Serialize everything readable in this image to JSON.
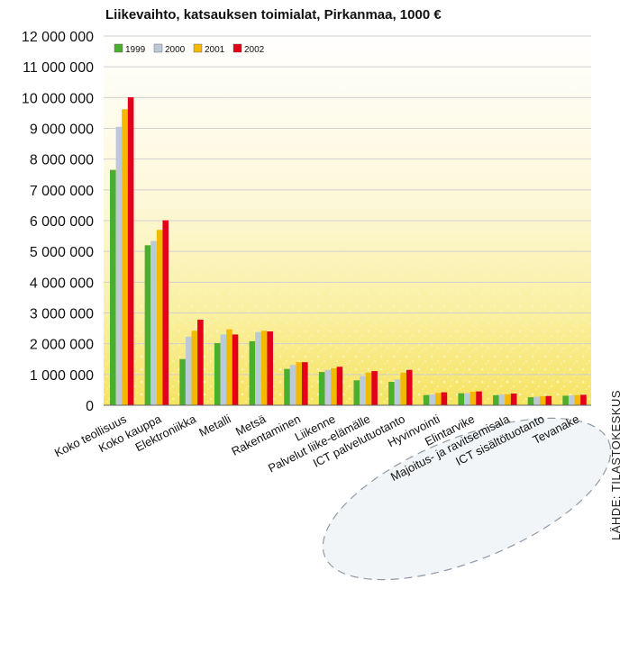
{
  "chart_data": {
    "type": "bar",
    "title": "Liikevaihto, katsauksen toimialat, Pirkanmaa, 1000 €",
    "source": "LÄHDE: TILASTOKESKUS",
    "xlabel": "",
    "ylabel": "",
    "ylim": [
      0,
      12000000
    ],
    "yticks": [
      "0",
      "1 000 000",
      "2 000 000",
      "3 000 000",
      "4 000 000",
      "5 000 000",
      "6 000 000",
      "7 000 000",
      "8 000 000",
      "9 000 000",
      "10 000 000",
      "11 000 000",
      "12 000 000"
    ],
    "grid": true,
    "legend_position": "top-left",
    "categories": [
      "Koko teollisuus",
      "Koko kauppa",
      "Elektroniikka",
      "Metalli",
      "Metsä",
      "Rakentaminen",
      "Liikenne",
      "Palvelut liike-elämälle",
      "ICT palvelutuotanto",
      "Hyvinvointi",
      "Elintarvike",
      "Majoitus- ja ravitsemisala",
      "ICT sisältötuotanto",
      "Tevanake"
    ],
    "series": [
      {
        "name": "1999",
        "color": "#4cae2d",
        "values": [
          7650000,
          5200000,
          1500000,
          2020000,
          2080000,
          1180000,
          1080000,
          810000,
          760000,
          330000,
          390000,
          330000,
          260000,
          310000
        ]
      },
      {
        "name": "2000",
        "color": "#bcc9d6",
        "values": [
          9050000,
          5340000,
          2230000,
          2300000,
          2380000,
          1310000,
          1150000,
          950000,
          840000,
          350000,
          390000,
          350000,
          280000,
          320000
        ]
      },
      {
        "name": "2001",
        "color": "#f3b800",
        "values": [
          9620000,
          5700000,
          2420000,
          2470000,
          2420000,
          1400000,
          1200000,
          1060000,
          1060000,
          400000,
          440000,
          360000,
          290000,
          330000
        ]
      },
      {
        "name": "2002",
        "color": "#e3001b",
        "values": [
          10010000,
          6010000,
          2780000,
          2300000,
          2400000,
          1400000,
          1250000,
          1110000,
          1150000,
          420000,
          450000,
          380000,
          300000,
          340000
        ]
      }
    ],
    "highlight": {
      "shape": "dashed-ellipse",
      "categories": [
        "Hyvinvointi",
        "Elintarvike",
        "Majoitus- ja ravitsemisala",
        "ICT sisältötuotanto",
        "Tevanake"
      ]
    }
  }
}
